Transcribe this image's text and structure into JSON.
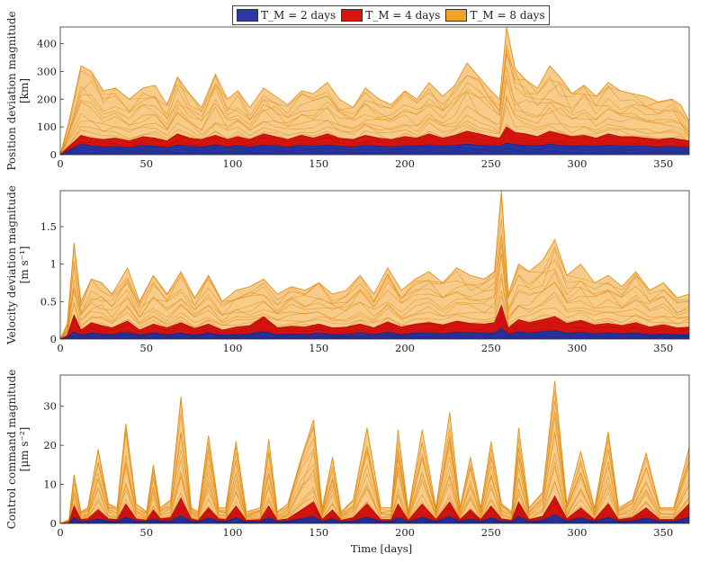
{
  "legend": {
    "items": [
      {
        "label": "T_M = 2 days",
        "color": "#2a38a8"
      },
      {
        "label": "T_M = 4 days",
        "color": "#d8140f"
      },
      {
        "label": "T_M = 8 days",
        "color": "#f0a22b"
      }
    ]
  },
  "xlabel": "Time [days]",
  "chart_data": [
    {
      "type": "area",
      "title": "",
      "ylabel": [
        "Position deviation magnitude",
        "[km]"
      ],
      "xlim": [
        0,
        365
      ],
      "ylim": [
        0,
        460
      ],
      "xticks": [
        0,
        50,
        100,
        150,
        200,
        250,
        300,
        350
      ],
      "yticks": [
        0,
        100,
        200,
        300,
        400
      ],
      "x": [
        0,
        5,
        12,
        18,
        25,
        32,
        40,
        48,
        55,
        62,
        68,
        75,
        82,
        90,
        97,
        103,
        110,
        118,
        125,
        132,
        140,
        147,
        155,
        162,
        170,
        177,
        185,
        192,
        200,
        207,
        214,
        222,
        229,
        236,
        243,
        250,
        255,
        259,
        264,
        270,
        277,
        284,
        290,
        297,
        304,
        311,
        318,
        325,
        332,
        340,
        347,
        355,
        360,
        365
      ],
      "series": [
        {
          "name": "T_M = 8 days",
          "values": [
            0,
            120,
            320,
            300,
            230,
            240,
            200,
            240,
            250,
            180,
            280,
            220,
            170,
            290,
            200,
            230,
            170,
            240,
            210,
            180,
            230,
            220,
            260,
            200,
            170,
            240,
            200,
            180,
            230,
            200,
            260,
            210,
            250,
            330,
            280,
            230,
            200,
            465,
            310,
            270,
            240,
            320,
            280,
            220,
            250,
            210,
            260,
            230,
            220,
            210,
            190,
            200,
            180,
            120
          ]
        },
        {
          "name": "T_M = 4 days",
          "values": [
            0,
            30,
            70,
            60,
            55,
            60,
            50,
            65,
            60,
            50,
            75,
            60,
            55,
            70,
            55,
            65,
            55,
            75,
            65,
            55,
            70,
            60,
            75,
            60,
            55,
            70,
            60,
            55,
            65,
            60,
            75,
            60,
            70,
            85,
            75,
            65,
            60,
            100,
            80,
            75,
            65,
            85,
            75,
            65,
            70,
            60,
            75,
            65,
            65,
            60,
            55,
            60,
            55,
            50
          ]
        },
        {
          "name": "T_M = 2 days",
          "values": [
            0,
            15,
            38,
            32,
            28,
            30,
            25,
            33,
            30,
            26,
            35,
            30,
            28,
            35,
            28,
            32,
            28,
            35,
            32,
            28,
            33,
            30,
            36,
            30,
            28,
            34,
            30,
            28,
            32,
            30,
            36,
            30,
            34,
            38,
            34,
            32,
            30,
            42,
            36,
            34,
            32,
            38,
            34,
            30,
            32,
            30,
            34,
            32,
            31,
            30,
            28,
            30,
            28,
            26
          ]
        }
      ]
    },
    {
      "type": "area",
      "title": "",
      "ylabel": [
        "Velocity deviation magnitude",
        "[m s⁻¹]"
      ],
      "xlim": [
        0,
        365
      ],
      "ylim": [
        0,
        1.98
      ],
      "xticks": [
        0,
        50,
        100,
        150,
        200,
        250,
        300,
        350
      ],
      "yticks": [
        0,
        0.5,
        1,
        1.5
      ],
      "ytick_labels": [
        "0",
        "0.5",
        "1",
        "1.5"
      ],
      "x": [
        0,
        4,
        8,
        12,
        18,
        24,
        30,
        39,
        46,
        54,
        62,
        70,
        78,
        86,
        94,
        102,
        110,
        118,
        126,
        134,
        142,
        150,
        158,
        166,
        174,
        182,
        190,
        198,
        206,
        214,
        222,
        230,
        238,
        246,
        252,
        256,
        260,
        266,
        272,
        280,
        287,
        294,
        302,
        310,
        318,
        326,
        334,
        342,
        350,
        358,
        365
      ],
      "series": [
        {
          "name": "T_M = 8 days",
          "values": [
            0,
            0.2,
            1.28,
            0.5,
            0.8,
            0.75,
            0.6,
            0.95,
            0.5,
            0.85,
            0.6,
            0.9,
            0.55,
            0.85,
            0.5,
            0.65,
            0.7,
            0.8,
            0.6,
            0.7,
            0.65,
            0.75,
            0.6,
            0.65,
            0.85,
            0.6,
            0.95,
            0.65,
            0.8,
            0.9,
            0.75,
            0.95,
            0.85,
            0.8,
            0.9,
            1.98,
            0.6,
            1.0,
            0.9,
            1.05,
            1.33,
            0.85,
            1.0,
            0.75,
            0.85,
            0.7,
            0.9,
            0.65,
            0.75,
            0.55,
            0.6
          ]
        },
        {
          "name": "T_M = 4 days",
          "values": [
            0,
            0.05,
            0.32,
            0.12,
            0.22,
            0.18,
            0.15,
            0.24,
            0.12,
            0.2,
            0.15,
            0.22,
            0.14,
            0.2,
            0.12,
            0.16,
            0.18,
            0.3,
            0.15,
            0.17,
            0.16,
            0.2,
            0.15,
            0.16,
            0.2,
            0.15,
            0.23,
            0.16,
            0.2,
            0.22,
            0.19,
            0.24,
            0.21,
            0.2,
            0.22,
            0.45,
            0.15,
            0.26,
            0.22,
            0.26,
            0.3,
            0.21,
            0.25,
            0.19,
            0.21,
            0.18,
            0.22,
            0.16,
            0.19,
            0.15,
            0.16
          ]
        },
        {
          "name": "T_M = 2 days",
          "values": [
            0,
            0.02,
            0.1,
            0.05,
            0.08,
            0.07,
            0.06,
            0.09,
            0.05,
            0.08,
            0.06,
            0.08,
            0.05,
            0.08,
            0.05,
            0.06,
            0.07,
            0.1,
            0.06,
            0.07,
            0.06,
            0.08,
            0.06,
            0.06,
            0.08,
            0.06,
            0.09,
            0.06,
            0.08,
            0.08,
            0.07,
            0.09,
            0.08,
            0.08,
            0.08,
            0.15,
            0.06,
            0.1,
            0.08,
            0.1,
            0.11,
            0.08,
            0.09,
            0.07,
            0.08,
            0.07,
            0.08,
            0.06,
            0.07,
            0.06,
            0.06
          ]
        }
      ]
    },
    {
      "type": "area",
      "title": "",
      "ylabel": [
        "Control command magnitude",
        "[μm s⁻²]"
      ],
      "xlim": [
        0,
        365
      ],
      "ylim": [
        0,
        38
      ],
      "xticks": [
        0,
        50,
        100,
        150,
        200,
        250,
        300,
        350
      ],
      "yticks": [
        0,
        10,
        20,
        30
      ],
      "x": [
        0,
        5,
        8,
        12,
        16,
        22,
        28,
        33,
        38,
        44,
        50,
        54,
        58,
        64,
        70,
        76,
        80,
        86,
        92,
        96,
        102,
        108,
        116,
        121,
        126,
        132,
        140,
        147,
        152,
        158,
        163,
        170,
        178,
        186,
        192,
        196,
        202,
        210,
        218,
        226,
        232,
        238,
        244,
        250,
        256,
        262,
        266,
        272,
        280,
        287,
        294,
        302,
        310,
        318,
        324,
        332,
        340,
        348,
        356,
        365
      ],
      "series": [
        {
          "name": "T_M = 8 days",
          "values": [
            0,
            1,
            12.5,
            3,
            4,
            19,
            5,
            4,
            25.5,
            5,
            3,
            15,
            4,
            6,
            32.5,
            4,
            3,
            22.5,
            4,
            4,
            21,
            3,
            4,
            21.5,
            3,
            5,
            17,
            26.5,
            4,
            17,
            3,
            6,
            24.5,
            4,
            4,
            24,
            3,
            24,
            4,
            28.5,
            4,
            17,
            4,
            21,
            5,
            3,
            24.5,
            4,
            8,
            36.5,
            5,
            18.5,
            4,
            23.5,
            4,
            6,
            18,
            4,
            4,
            19.5
          ]
        },
        {
          "name": "T_M = 4 days",
          "values": [
            0,
            0.3,
            4.5,
            1,
            1.2,
            3.5,
            1.2,
            1,
            5,
            1.2,
            0.8,
            3.5,
            1.2,
            1.5,
            6.5,
            1.2,
            0.8,
            4,
            1.2,
            1,
            4.5,
            0.8,
            1,
            4.5,
            0.8,
            1.2,
            3.5,
            5.5,
            1,
            3.5,
            0.8,
            1.5,
            5,
            1,
            1,
            5,
            0.8,
            5,
            1,
            5.5,
            1,
            3.5,
            1,
            4.5,
            1.2,
            0.8,
            5.5,
            1,
            1.8,
            7,
            1.2,
            4,
            1,
            5,
            1,
            1.5,
            4,
            1,
            1,
            5
          ]
        },
        {
          "name": "T_M = 2 days",
          "values": [
            0,
            0.1,
            1.5,
            0.5,
            0.6,
            1.2,
            0.6,
            0.5,
            1.6,
            0.6,
            0.4,
            1.2,
            0.6,
            0.7,
            2,
            0.6,
            0.4,
            1.4,
            0.6,
            0.5,
            1.5,
            0.4,
            0.5,
            1.5,
            0.4,
            0.6,
            1.2,
            1.8,
            0.5,
            1.2,
            0.4,
            0.7,
            1.6,
            0.5,
            0.5,
            1.6,
            0.4,
            1.6,
            0.5,
            1.8,
            0.5,
            1.2,
            0.5,
            1.5,
            0.6,
            0.4,
            1.8,
            0.5,
            0.8,
            2.2,
            0.6,
            1.4,
            0.5,
            1.6,
            0.5,
            0.7,
            1.4,
            0.5,
            0.5,
            1.6
          ]
        }
      ]
    }
  ]
}
